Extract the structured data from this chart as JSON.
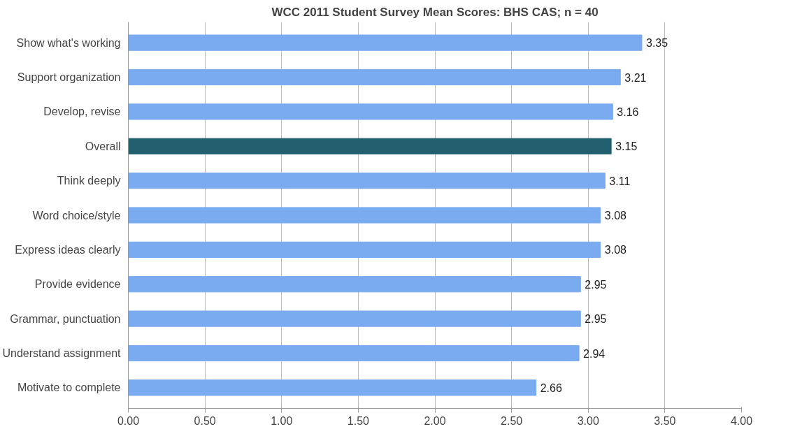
{
  "chart_data": {
    "type": "bar",
    "orientation": "horizontal",
    "title": "WCC 2011 Student Survey Mean Scores: BHS CAS; n = 40",
    "categories": [
      "Show what's working",
      "Support organization",
      "Develop, revise",
      "Overall",
      "Think deeply",
      "Word choice/style",
      "Express ideas clearly",
      "Provide evidence",
      "Grammar, punctuation",
      "Understand assignment",
      "Motivate to complete"
    ],
    "values": [
      3.35,
      3.21,
      3.16,
      3.15,
      3.11,
      3.08,
      3.08,
      2.95,
      2.95,
      2.94,
      2.66
    ],
    "colors": [
      "#7aaaf0",
      "#7aaaf0",
      "#7aaaf0",
      "#215f6e",
      "#7aaaf0",
      "#7aaaf0",
      "#7aaaf0",
      "#7aaaf0",
      "#7aaaf0",
      "#7aaaf0",
      "#7aaaf0"
    ],
    "xlim": [
      0,
      4
    ],
    "xticks": [
      {
        "value": 0,
        "label": "0.00"
      },
      {
        "value": 0.5,
        "label": "0.50"
      },
      {
        "value": 1,
        "label": "1.00"
      },
      {
        "value": 1.5,
        "label": "1.50"
      },
      {
        "value": 2,
        "label": "2.00"
      },
      {
        "value": 2.5,
        "label": "2.50"
      },
      {
        "value": 3,
        "label": "3.00"
      },
      {
        "value": 3.5,
        "label": "3.50"
      },
      {
        "value": 4,
        "label": "4.00"
      }
    ],
    "grid": "x",
    "data_labels": true
  }
}
